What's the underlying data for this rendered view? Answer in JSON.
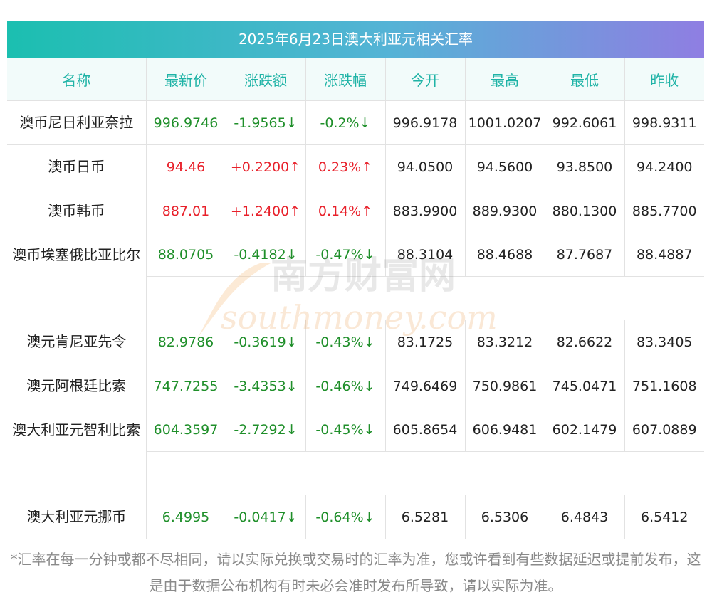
{
  "title": "2025年6月23日澳大利亚元相关汇率",
  "headers": [
    "名称",
    "最新价",
    "涨跌额",
    "涨跌幅",
    "今开",
    "最高",
    "最低",
    "昨收"
  ],
  "rows": [
    {
      "name": "澳币尼日利亚奈拉",
      "latest": "996.9746",
      "change": "-1.9565↓",
      "pct": "-0.2%↓",
      "open": "996.9178",
      "high": "1001.0207",
      "low": "992.6061",
      "prev": "998.9311",
      "dir": "down"
    },
    {
      "name": "澳币日币",
      "latest": "94.46",
      "change": "+0.2200↑",
      "pct": "0.23%↑",
      "open": "94.0500",
      "high": "94.5600",
      "low": "93.8500",
      "prev": "94.2400",
      "dir": "up"
    },
    {
      "name": "澳币韩币",
      "latest": "887.01",
      "change": "+1.2400↑",
      "pct": "0.14%↑",
      "open": "883.9900",
      "high": "889.9300",
      "low": "880.1300",
      "prev": "885.7700",
      "dir": "up"
    },
    {
      "name": "澳币埃塞俄比亚比尔",
      "latest": "88.0705",
      "change": "-0.4182↓",
      "pct": "-0.47%↓",
      "open": "88.3104",
      "high": "88.4688",
      "low": "87.7687",
      "prev": "88.4887",
      "dir": "down"
    },
    {
      "name": "澳元肯尼亚先令",
      "latest": "82.9786",
      "change": "-0.3619↓",
      "pct": "-0.43%↓",
      "open": "83.1725",
      "high": "83.3212",
      "low": "82.6622",
      "prev": "83.3405",
      "dir": "down"
    },
    {
      "name": "澳元阿根廷比索",
      "latest": "747.7255",
      "change": "-3.4353↓",
      "pct": "-0.46%↓",
      "open": "749.6469",
      "high": "750.9861",
      "low": "745.0471",
      "prev": "751.1608",
      "dir": "down"
    },
    {
      "name": "澳大利亚元智利比索",
      "latest": "604.3597",
      "change": "-2.7292↓",
      "pct": "-0.45%↓",
      "open": "605.8654",
      "high": "606.9481",
      "low": "602.1479",
      "prev": "607.0889",
      "dir": "down"
    },
    {
      "name": "澳大利亚元挪币",
      "latest": "6.4995",
      "change": "-0.0417↓",
      "pct": "-0.64%↓",
      "open": "6.5281",
      "high": "6.5306",
      "low": "6.4843",
      "prev": "6.5412",
      "dir": "down"
    }
  ],
  "footnote": "*汇率在每一分钟或都不尽相同，请以实际兑换或交易时的汇率为准，您或许看到有些数据延迟或提前发布，这是由于数据公布机构有时未必会准时发布所导致，请以实际为准。",
  "watermark": {
    "cn": "南方财富网",
    "en": "southmoney.com"
  },
  "colors": {
    "up": "#e8202a",
    "down": "#1f8f2a",
    "header_text": "#1fb3a6",
    "title_gradient_start": "#1bbfb0",
    "title_gradient_end": "#8f7ee2"
  }
}
